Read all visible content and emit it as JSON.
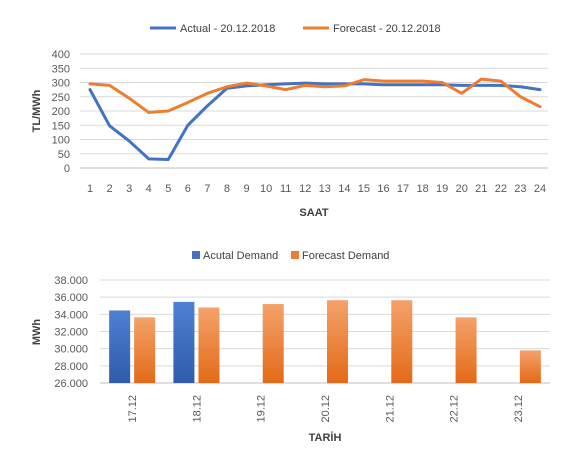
{
  "chart_data": [
    {
      "type": "line",
      "title": "",
      "xlabel": "SAAT",
      "ylabel": "TL/MWh",
      "ylim": [
        0,
        400
      ],
      "yticks": [
        "0",
        "50",
        "100",
        "150",
        "200",
        "250",
        "300",
        "350",
        "400"
      ],
      "x": [
        1,
        2,
        3,
        4,
        5,
        6,
        7,
        8,
        9,
        10,
        11,
        12,
        13,
        14,
        15,
        16,
        17,
        18,
        19,
        20,
        21,
        22,
        23,
        24
      ],
      "grid": true,
      "legend_position": "top",
      "series": [
        {
          "name": "Actual - 20.12.2018",
          "color": "#4472C4",
          "values": [
            275,
            148,
            95,
            32,
            30,
            150,
            218,
            280,
            288,
            292,
            295,
            298,
            295,
            295,
            295,
            292,
            292,
            292,
            292,
            290,
            290,
            290,
            285,
            275
          ]
        },
        {
          "name": "Forecast - 20.12.2018",
          "color": "#ED7D31",
          "values": [
            295,
            290,
            245,
            195,
            200,
            230,
            262,
            285,
            298,
            288,
            275,
            290,
            285,
            288,
            310,
            305,
            305,
            305,
            300,
            262,
            312,
            305,
            250,
            215
          ]
        }
      ]
    },
    {
      "type": "bar",
      "title": "",
      "xlabel": "TARİH",
      "ylabel": "MWh",
      "ylim": [
        26000,
        38000
      ],
      "yticks": [
        "26.000",
        "28.000",
        "30.000",
        "32.000",
        "34.000",
        "36.000",
        "38.000"
      ],
      "categories": [
        "17.12",
        "18.12",
        "19.12",
        "20.12",
        "21.12",
        "22.12",
        "23.12"
      ],
      "grid": true,
      "legend_position": "top",
      "series": [
        {
          "name": "Acutal Demand",
          "color": "#4472C4",
          "values": [
            34450,
            35450,
            null,
            null,
            null,
            null,
            null
          ]
        },
        {
          "name": "Forecast Demand",
          "color": "#ED7D31",
          "values": [
            33650,
            34800,
            35200,
            35650,
            35650,
            33650,
            29800
          ]
        }
      ]
    }
  ]
}
